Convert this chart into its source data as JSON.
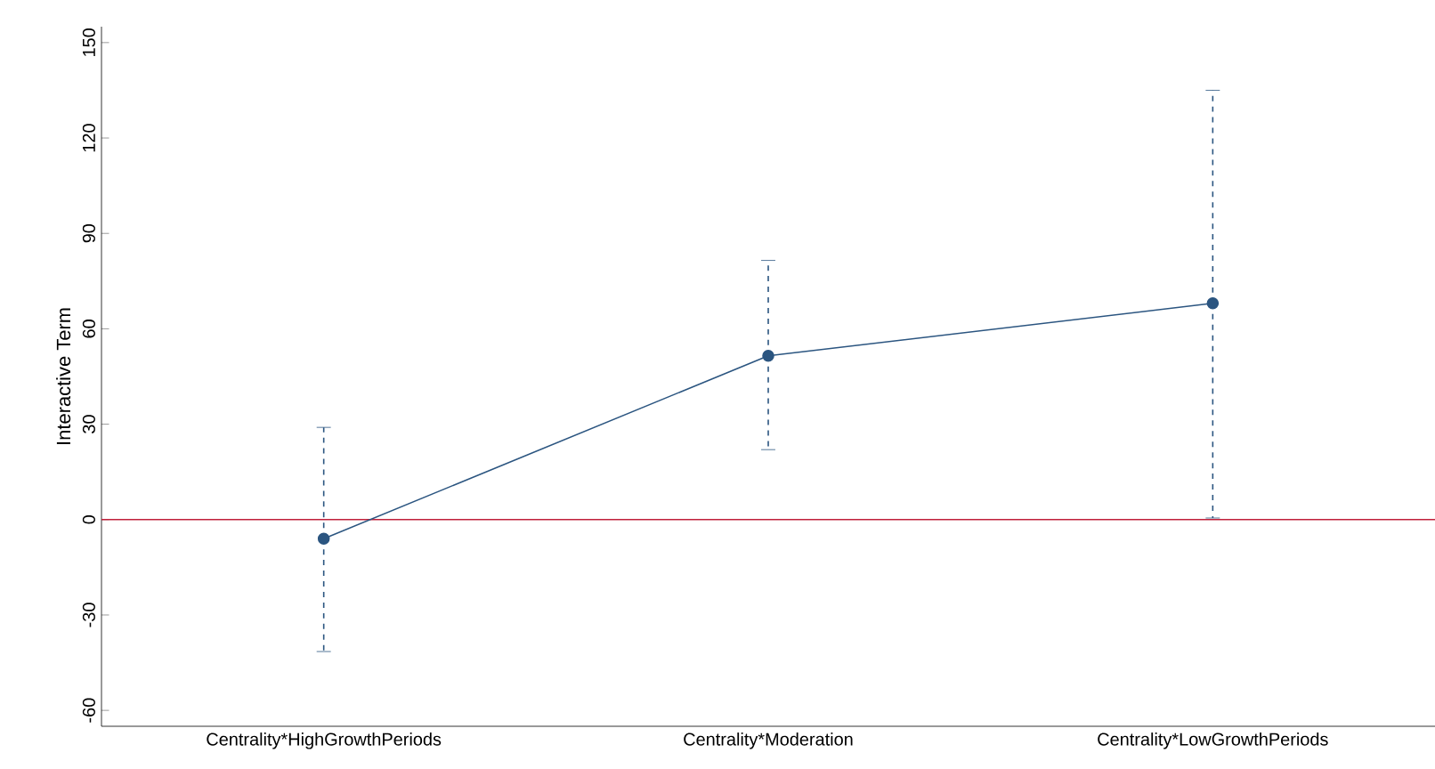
{
  "chart_data": {
    "type": "line",
    "ylabel": "Interactive Term",
    "categories": [
      "Centrality*HighGrowthPeriods",
      "Centrality*Moderation",
      "Centrality*LowGrowthPeriods"
    ],
    "series": [
      {
        "color": "#2b5580",
        "values": [
          -6,
          51.5,
          68
        ],
        "errors": [
          [
            -41.5,
            29
          ],
          [
            22,
            81.5
          ],
          [
            0.5,
            135
          ]
        ]
      }
    ],
    "ylim": [
      -65,
      155
    ],
    "yticks": [
      -60,
      -30,
      0,
      30,
      60,
      90,
      120,
      150
    ],
    "ref_lines": [
      {
        "axis": "y",
        "value": 0,
        "color": "#c0203a"
      }
    ],
    "marker": "circle",
    "line_style": "solid",
    "grid": false
  }
}
